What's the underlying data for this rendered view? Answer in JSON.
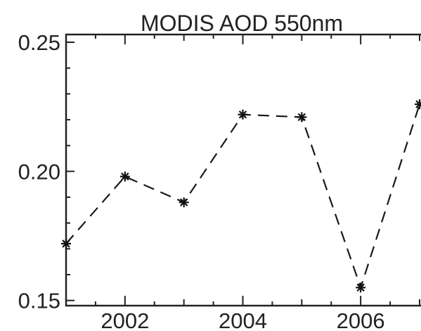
{
  "chart_data": {
    "type": "line",
    "title": "MODIS AOD 550nm",
    "xlabel": "",
    "ylabel": "",
    "x": [
      2001,
      2002,
      2003,
      2004,
      2005,
      2006,
      2007
    ],
    "series": [
      {
        "values": [
          0.172,
          0.198,
          0.188,
          0.222,
          0.221,
          0.155,
          0.226
        ]
      }
    ],
    "xlim": [
      2001,
      2007
    ],
    "ylim": [
      0.148,
      0.253
    ],
    "xticks": [
      2002,
      2004,
      2006
    ],
    "xtick_labels": [
      "2002",
      "2004",
      "2006"
    ],
    "yticks": [
      0.15,
      0.2,
      0.25
    ],
    "ytick_labels": [
      "0.15",
      "0.20",
      "0.25"
    ],
    "line_style": "dashed",
    "marker": "asterisk",
    "line_color": "#1a1a1a",
    "grid": false,
    "legend": "none"
  }
}
